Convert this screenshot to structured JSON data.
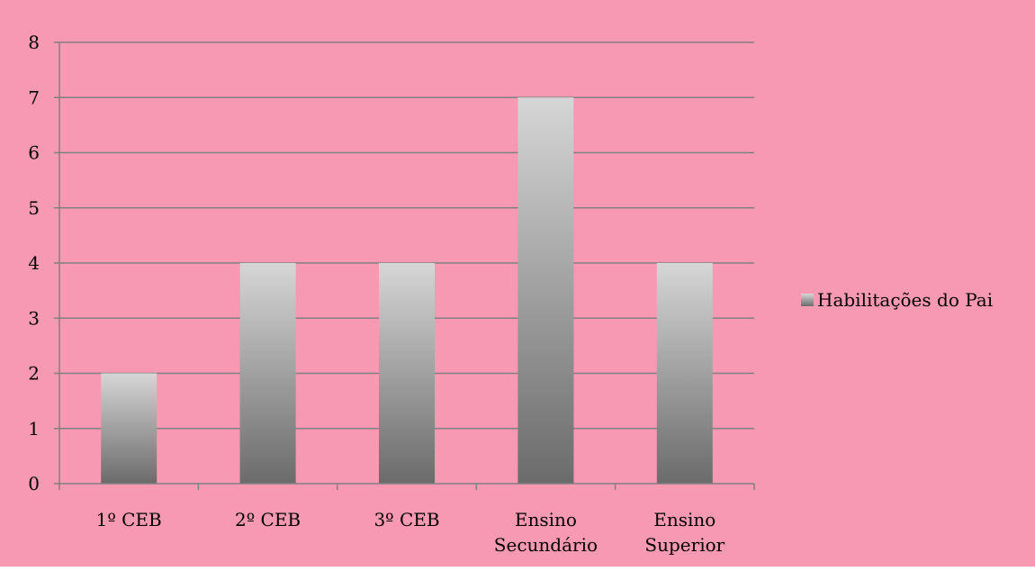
{
  "chart_data": {
    "type": "bar",
    "categories": [
      [
        "1º CEB"
      ],
      [
        "2º CEB"
      ],
      [
        "3º CEB"
      ],
      [
        "Ensino",
        "Secundário"
      ],
      [
        "Ensino",
        "Superior"
      ]
    ],
    "series": [
      {
        "name": "Habilitações do Pai",
        "values": [
          2,
          4,
          4,
          7,
          4
        ]
      }
    ],
    "title": "",
    "xlabel": "",
    "ylabel": "",
    "ylim": [
      0,
      8
    ],
    "yticks": [
      0,
      1,
      2,
      3,
      4,
      5,
      6,
      7,
      8
    ],
    "grid": true,
    "legend_position": "right"
  },
  "colors": {
    "background": "#f799b2",
    "gridline": "#808080",
    "axis": "#808080",
    "bar_top": "#d6d6d6",
    "bar_bottom": "#6b6b6b"
  }
}
